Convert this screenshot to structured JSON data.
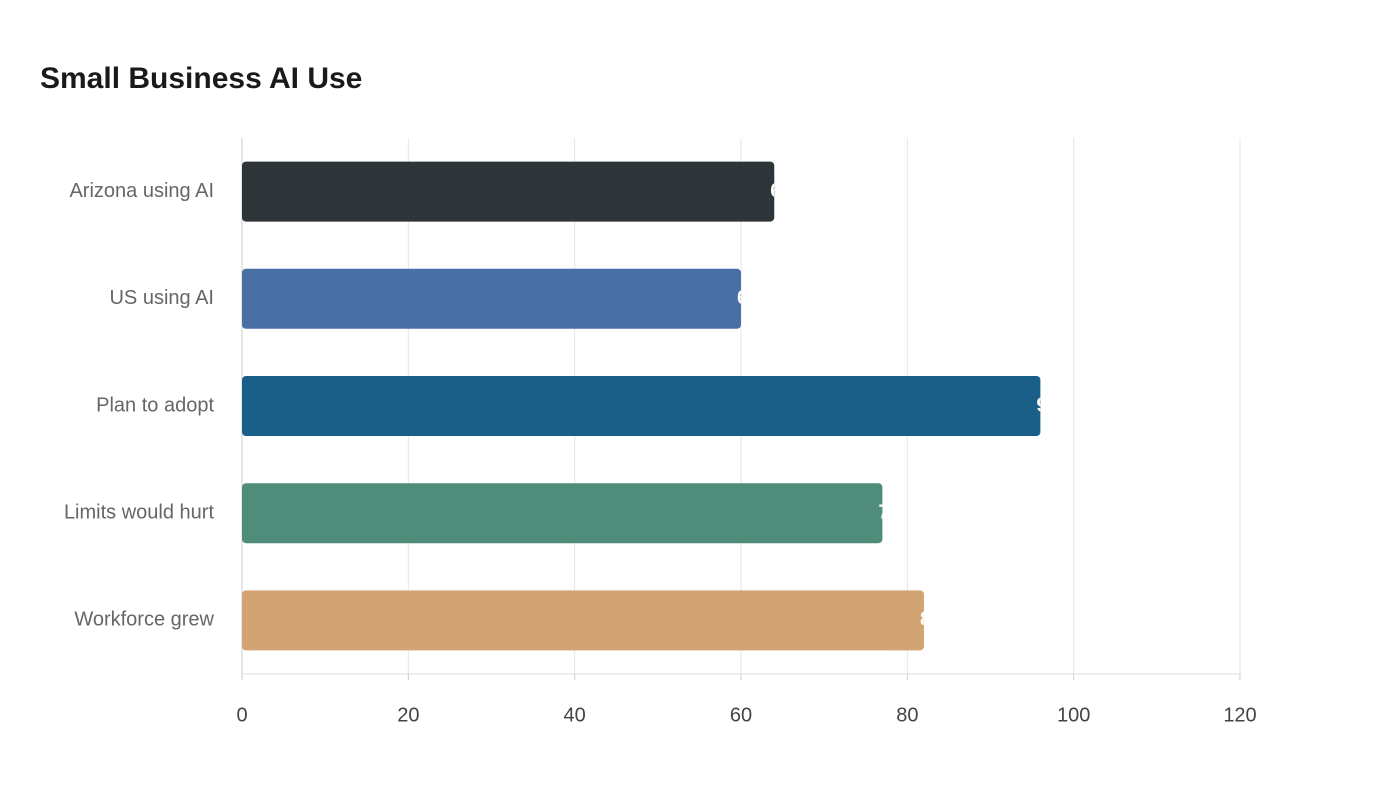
{
  "chart_data": {
    "type": "barh",
    "title": "Small Business AI Use",
    "categories": [
      "Arizona using AI",
      "US using AI",
      "Plan to adopt",
      "Limits would hurt",
      "Workforce grew"
    ],
    "values": [
      64,
      60,
      96,
      77,
      82
    ],
    "colors": [
      "#2e3538",
      "#4a6fa5",
      "#1a5f87",
      "#4f8d7a",
      "#d3a473"
    ],
    "xlim": [
      0,
      120
    ],
    "xticks": [
      0,
      20,
      40,
      60,
      80,
      100,
      120
    ],
    "grid": true
  }
}
